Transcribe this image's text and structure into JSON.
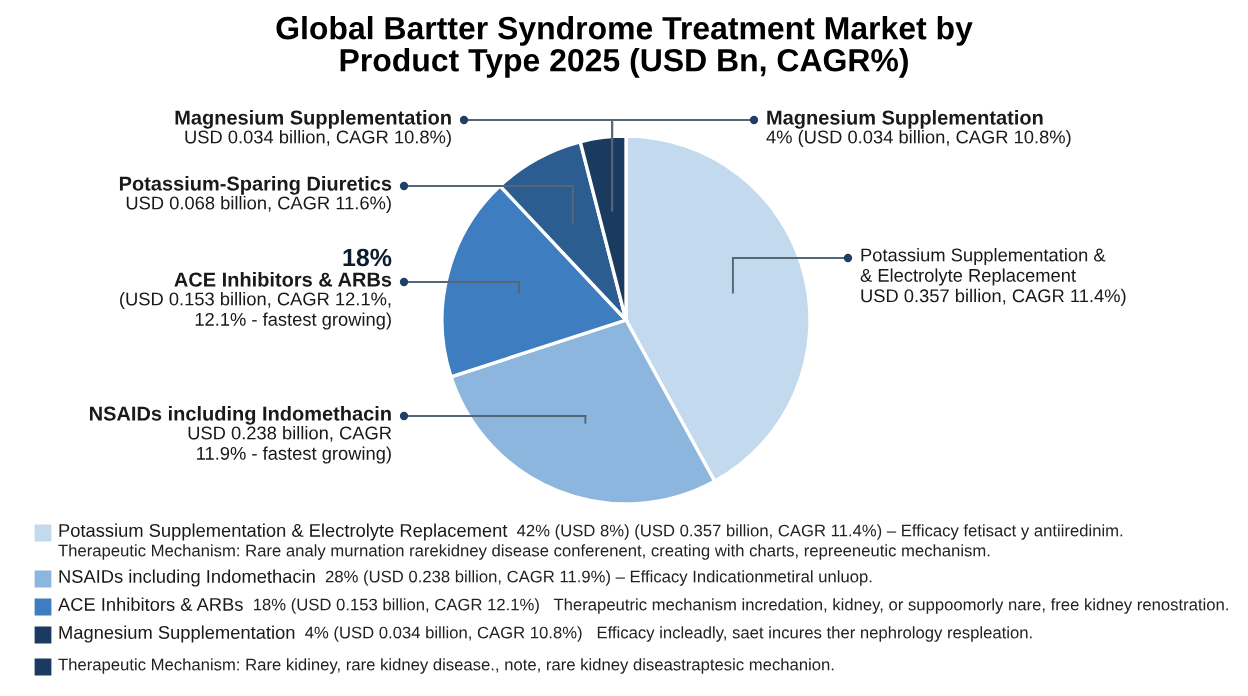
{
  "chart_data": {
    "type": "pie",
    "title": "Global Bartter Syndrome Treatment Market by\nProduct Type 2025 (USD Bn, CAGR%)",
    "categories": [
      "Potassium Supplementation & Electrolyte Replacement",
      "NSAIDs including Indomethacin",
      "ACE Inhibitors & ARBs",
      "Potassium-Sparing Diuretics",
      "Magnesium Supplementation"
    ],
    "values": [
      42,
      28,
      18,
      8,
      4
    ],
    "colors": [
      "#c3d9ee",
      "#8cb6de",
      "#3e7ec0",
      "#2b5d91",
      "#1a3a5f"
    ],
    "legend": "bottom",
    "annotations": [
      {
        "text": "USD 0.034 billion, CAGR 10.8%)",
        "x": "Magnesium Supplementation"
      },
      {
        "text": "4% (USD 0.034 billion, CAGR 10.8%)",
        "x": "Magnesium Supplementation"
      },
      {
        "text": "USD 0.068 billion, CAGR 11.6%)",
        "x": "Potassium-Sparing Diuretics"
      },
      "18%",
      {
        "text": "(USD 0.153 billion, CAGR 12.1%,\n12.1% - fastest growing)",
        "x": "ACE Inhibitors & ARBs"
      },
      {
        "text": "USD 0.238 billion, CAGR\n11.9% - fastest growing)",
        "x": "NSAIDs including Indomethacin"
      },
      {
        "text": "Potassium Supplementation &\n& Electrolyte Replacement\nUSD 0.357 billion, CAGR 11.4%)",
        "x": "Potassium Supplementation & Electrolyte Replacement"
      },
      {
        "text": "42% (USD 8%) (USD 0.357 billion, CAGR 11.4%) – Efficacy fetisact y antiiredinim.",
        "x": "Potassium Supplementation & Electrolyte Replacement"
      },
      "Therapeutic Mechanism: Rare analy murnation rarekidney disease conferenent, creating with charts, repreeneutic mechanism.",
      {
        "text": "28% (USD 0.238 billion, CAGR 11.9%) – Efficacy Indicationmetiral unluop.",
        "x": "NSAIDs including Indomethacin"
      },
      {
        "text": "18% (USD 0.153 billion, CAGR 12.1%)   Therapeutric mechanism incredation, kidney, or suppoomorly nare, free kidney renostration.",
        "x": "ACE Inhibitors & ARBs"
      },
      {
        "text": "4% (USD 0.034 billion, CAGR 10.8%)   Efficacy incleadly, saet incures ther nephrology respleation.",
        "x": "Magnesium Supplementation"
      },
      "Therapeutic Mechanism: Rare kidiney, rare kidney disease., note, rare kidney diseastraptesic mechanion."
    ]
  }
}
